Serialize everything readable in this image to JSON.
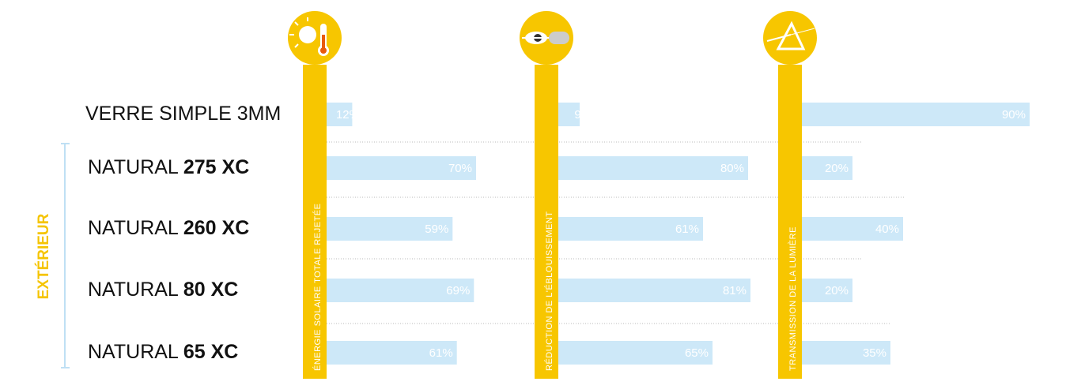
{
  "chart_data": {
    "type": "bar",
    "group_label": "EXTÉRIEUR",
    "rows": [
      {
        "name": "VERRE SIMPLE 3MM"
      },
      {
        "name": "NATURAL",
        "model": "275 XC"
      },
      {
        "name": "NATURAL",
        "model": "260 XC"
      },
      {
        "name": "NATURAL",
        "model": "80 XC"
      },
      {
        "name": "NATURAL",
        "model": "65 XC"
      }
    ],
    "xlim": [
      0,
      100
    ],
    "color": "#cde8f8",
    "series": [
      {
        "name": "ÉNERGIE SOLAIRE TOTALE REJETÉE",
        "color": "#cde8f8",
        "values": [
          12,
          70,
          59,
          69,
          61
        ],
        "value_labels": [
          "12%",
          "70%",
          "59%",
          "69%",
          "61%"
        ]
      },
      {
        "name": "RÉDUCTION DE L'ÉBLOUISSEMENT",
        "color": "#cde8f8",
        "values": [
          9,
          80,
          61,
          81,
          65
        ],
        "value_labels": [
          "9%",
          "80%",
          "61%",
          "81%",
          "65%"
        ]
      },
      {
        "name": "TRANSMISSION DE LA LUMIÈRE",
        "color": "#cde8f8",
        "values": [
          90,
          20,
          40,
          20,
          35
        ],
        "value_labels": [
          "90%",
          "20%",
          "40%",
          "20%",
          "35%"
        ]
      }
    ]
  }
}
